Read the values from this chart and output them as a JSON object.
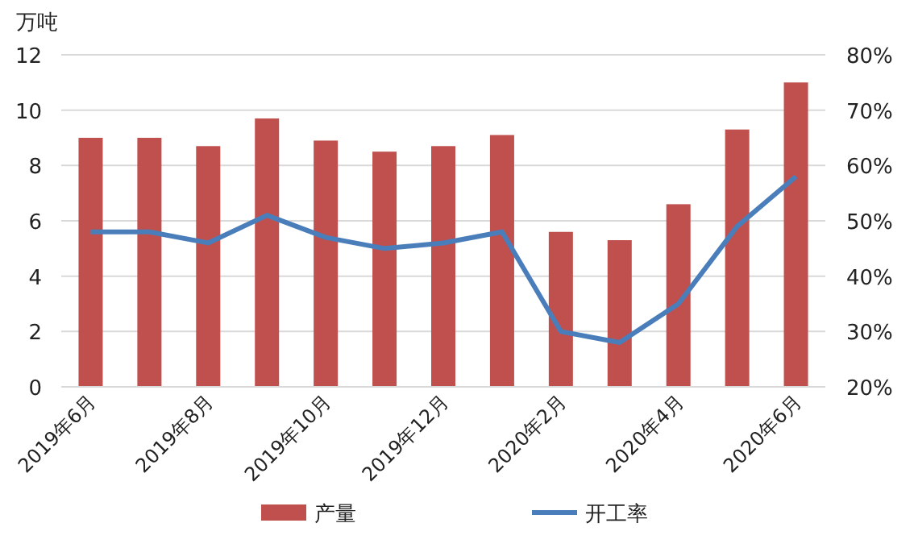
{
  "chart_data": {
    "type": "bar",
    "ylabel": "万吨",
    "categories": [
      "2019年6月",
      null,
      "2019年8月",
      null,
      "2019年10月",
      null,
      "2019年12月",
      null,
      "2020年2月",
      null,
      "2020年4月",
      null,
      "2020年6月"
    ],
    "series": [
      {
        "name": "产量",
        "color": "#c0504d",
        "values": [
          9.0,
          9.0,
          8.7,
          9.7,
          8.9,
          8.5,
          8.7,
          9.1,
          5.6,
          5.3,
          6.6,
          9.3,
          11.0
        ]
      },
      {
        "name": "开工率",
        "type": "line",
        "axis": "y2",
        "color": "#4a7ebb",
        "values": [
          48,
          48,
          46,
          51,
          47,
          45,
          46,
          48,
          30,
          28,
          35,
          49,
          58
        ]
      }
    ],
    "ylim": [
      0,
      12
    ],
    "yticks": [
      0,
      2,
      4,
      6,
      8,
      10,
      12
    ],
    "y2lim": [
      20,
      80
    ],
    "y2ticks": [
      {
        "value": 20,
        "label": "20%"
      },
      {
        "value": 30,
        "label": "30%"
      },
      {
        "value": 40,
        "label": "40%"
      },
      {
        "value": 50,
        "label": "50%"
      },
      {
        "value": 60,
        "label": "60%"
      },
      {
        "value": 70,
        "label": "70%"
      },
      {
        "value": 80,
        "label": "80%"
      }
    ],
    "grid": "y",
    "legend": "bottom",
    "marker": "none",
    "line_style": "solid"
  }
}
